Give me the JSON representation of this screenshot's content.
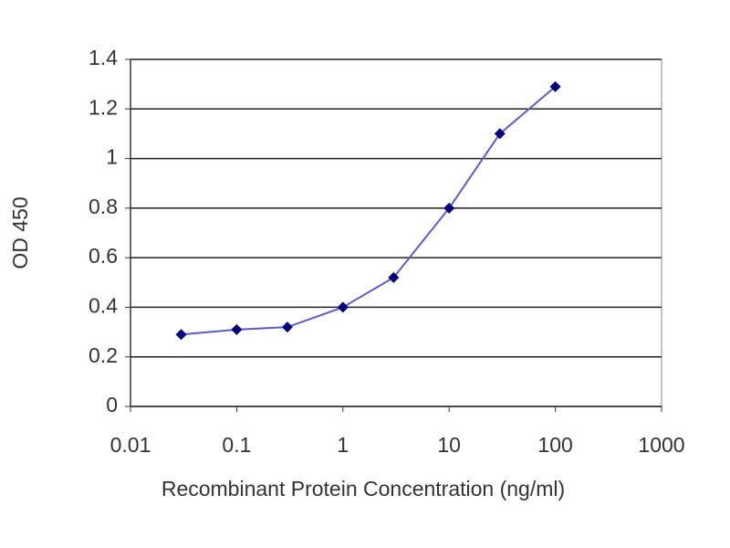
{
  "chart_data": {
    "type": "line",
    "x_label": "Recombinant Protein Concentration (ng/ml)",
    "y_label": "OD 450",
    "x": [
      0.03,
      0.1,
      0.3,
      1,
      3,
      10,
      30,
      100
    ],
    "values": [
      0.29,
      0.31,
      0.32,
      0.4,
      0.52,
      0.8,
      1.1,
      1.29
    ],
    "line_color": "#5c5cc8",
    "marker_color": "#000080",
    "x_log": true,
    "xlim": [
      0.01,
      1000
    ],
    "xticks": [
      0.01,
      0.1,
      1,
      10,
      100,
      1000
    ],
    "ylim": [
      0,
      1.4
    ],
    "yticks": [
      0,
      0.2,
      0.4,
      0.6,
      0.8,
      1,
      1.2,
      1.4
    ],
    "grid": true
  }
}
